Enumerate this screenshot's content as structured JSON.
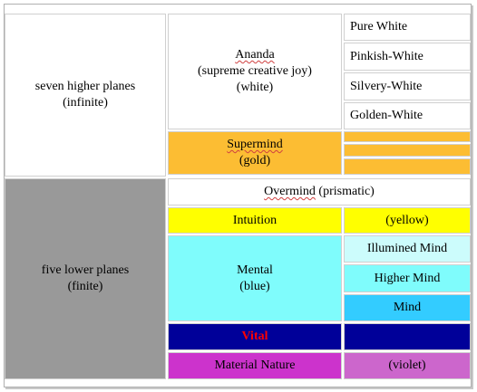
{
  "higher": {
    "label_line1": "seven higher  planes",
    "label_line2": "(infinite)",
    "ananda": {
      "name": "Ananda",
      "line2": "(supreme creative joy)",
      "line3": "(white)"
    },
    "whites": [
      "Pure White",
      "Pinkish-White",
      "Silvery-White",
      "Golden-White"
    ],
    "supermind": {
      "name": "Supermind",
      "line2": "(gold)"
    }
  },
  "lower": {
    "label_line1": "five lower  planes",
    "label_line2": "(finite)",
    "overmind": {
      "name": "Overmind",
      "suffix": " (prismatic)"
    },
    "intuition": {
      "label": "Intuition",
      "color_label": "(yellow)"
    },
    "mental": {
      "label": "Mental",
      "color_label": "(blue)",
      "sublevels": [
        "Illumined Mind",
        "Higher Mind",
        "Mind"
      ]
    },
    "vital": {
      "label": "Vital"
    },
    "material": {
      "label": "Material Nature",
      "color_label": "(violet)"
    }
  },
  "colors": {
    "white": "#ffffff",
    "gray": "#999999",
    "gold": "#fcbd33",
    "yellow": "#ffff00",
    "cyan": "#7ffcfc",
    "light_cyan": "#ccfcfc",
    "mid_cyan": "#33ccff",
    "navy": "#000099",
    "red_text": "#ff0000",
    "magenta": "#cc33cc",
    "violet": "#cc66cc"
  }
}
